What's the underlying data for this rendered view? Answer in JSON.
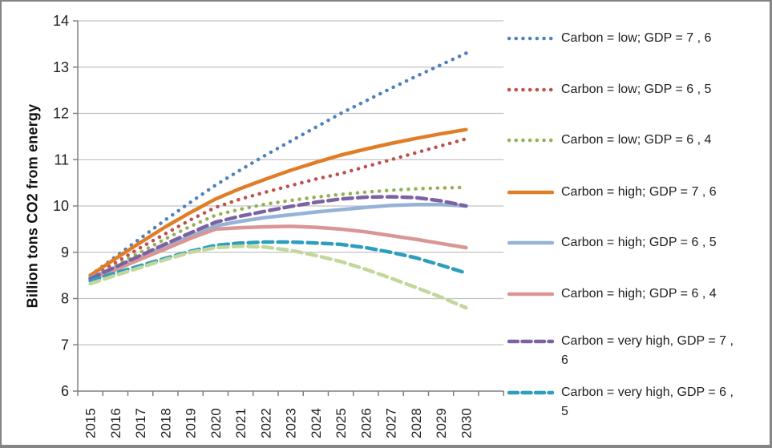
{
  "chart_data": {
    "type": "line",
    "title": "",
    "xlabel": "",
    "ylabel": "Billion tons CO2 from energy",
    "ylim": [
      6,
      14
    ],
    "yticks": [
      6,
      7,
      8,
      9,
      10,
      11,
      12,
      13,
      14
    ],
    "grid": "horizontal",
    "legend_position": "right",
    "axis_color": "#808080",
    "grid_color": "#c3c3c3",
    "text_color": "#1f1f1f",
    "categories": [
      "2015",
      "2016",
      "2017",
      "2018",
      "2019",
      "2020",
      "2021",
      "2022",
      "2023",
      "2024",
      "2025",
      "2026",
      "2027",
      "2028",
      "2029",
      "2030"
    ],
    "series": [
      {
        "name": "Carbon = low; GDP = 7 , 6",
        "style": "dotted",
        "color": "#4F81BD",
        "values": [
          8.5,
          8.9,
          9.3,
          9.7,
          10.08,
          10.45,
          10.78,
          11.1,
          11.4,
          11.7,
          12.0,
          12.27,
          12.54,
          12.8,
          13.05,
          13.3
        ]
      },
      {
        "name": "Carbon = low; GDP = 6 , 5",
        "style": "dotted",
        "color": "#C0504D",
        "values": [
          8.45,
          8.77,
          9.1,
          9.4,
          9.7,
          9.97,
          10.15,
          10.3,
          10.44,
          10.58,
          10.7,
          10.85,
          11.0,
          11.15,
          11.3,
          11.45
        ]
      },
      {
        "name": "Carbon = low; GDP = 6 , 4",
        "style": "dotted",
        "color": "#94B155",
        "values": [
          8.42,
          8.71,
          9.0,
          9.29,
          9.56,
          9.8,
          9.93,
          10.04,
          10.12,
          10.19,
          10.25,
          10.3,
          10.34,
          10.37,
          10.39,
          10.4
        ]
      },
      {
        "name": "Carbon = high; GDP = 7 , 6",
        "style": "solid",
        "color": "#E07E27",
        "values": [
          8.5,
          8.86,
          9.21,
          9.55,
          9.86,
          10.15,
          10.38,
          10.58,
          10.77,
          10.94,
          11.1,
          11.23,
          11.35,
          11.46,
          11.56,
          11.65
        ]
      },
      {
        "name": "Carbon = high; GDP = 6 , 5",
        "style": "solid",
        "color": "#95B3D7",
        "values": [
          8.45,
          8.67,
          8.9,
          9.12,
          9.35,
          9.57,
          9.67,
          9.75,
          9.81,
          9.87,
          9.92,
          9.97,
          10.01,
          10.03,
          10.03,
          10.0
        ]
      },
      {
        "name": "Carbon = high; GDP = 6 , 4",
        "style": "solid",
        "color": "#D99694",
        "values": [
          8.4,
          8.62,
          8.85,
          9.07,
          9.3,
          9.5,
          9.53,
          9.55,
          9.56,
          9.54,
          9.5,
          9.44,
          9.36,
          9.28,
          9.19,
          9.1
        ]
      },
      {
        "name": "Carbon = very high, GDP = 7 , 6",
        "style": "dashed",
        "color": "#7C62A1",
        "values": [
          8.43,
          8.68,
          8.93,
          9.18,
          9.42,
          9.65,
          9.78,
          9.89,
          9.99,
          10.08,
          10.15,
          10.19,
          10.2,
          10.18,
          10.11,
          10.0
        ]
      },
      {
        "name": "Carbon = very high, GDP = 6 , 5",
        "style": "dashed",
        "color": "#2D9EBD",
        "values": [
          8.38,
          8.55,
          8.71,
          8.87,
          9.02,
          9.15,
          9.2,
          9.22,
          9.22,
          9.2,
          9.17,
          9.1,
          9.0,
          8.88,
          8.72,
          8.55
        ]
      },
      {
        "name": "",
        "style": "dashed",
        "color": "#C3D69B",
        "values": [
          8.32,
          8.5,
          8.67,
          8.84,
          9.0,
          9.1,
          9.13,
          9.11,
          9.04,
          8.93,
          8.8,
          8.63,
          8.44,
          8.24,
          8.03,
          7.8
        ]
      }
    ],
    "legend": {
      "entries": [
        {
          "series": 0,
          "lines": [
            "Carbon = low; GDP = 7 , 6"
          ]
        },
        {
          "series": 1,
          "lines": [
            "Carbon = low; GDP = 6 , 5"
          ]
        },
        {
          "series": 2,
          "lines": [
            "Carbon = low; GDP = 6 , 4"
          ]
        },
        {
          "series": 3,
          "lines": [
            "Carbon = high; GDP = 7 , 6"
          ]
        },
        {
          "series": 4,
          "lines": [
            "Carbon = high; GDP = 6 , 5"
          ]
        },
        {
          "series": 5,
          "lines": [
            "Carbon = high; GDP = 6 , 4"
          ]
        },
        {
          "series": 6,
          "lines": [
            "Carbon = very high, GDP = 7 ,",
            "6"
          ]
        },
        {
          "series": 7,
          "lines": [
            "Carbon = very high, GDP = 6 ,",
            "5"
          ]
        }
      ]
    }
  }
}
